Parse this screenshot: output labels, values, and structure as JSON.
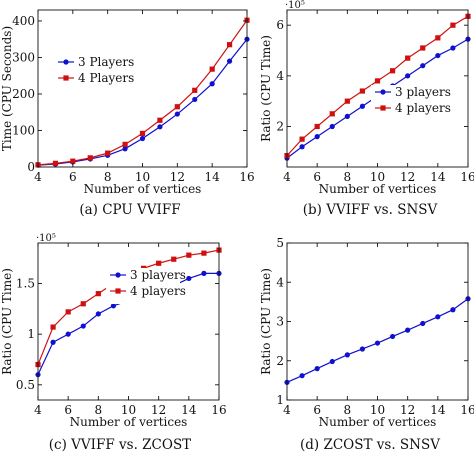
{
  "chart_data": [
    {
      "type": "line",
      "caption": "(a) CPU VVIFF",
      "xlabel": "Number of vertices",
      "ylabel": "Time (CPU Seconds)",
      "xlim": [
        4,
        16
      ],
      "ylim": [
        0,
        430
      ],
      "xticks": [
        4,
        6,
        8,
        10,
        12,
        14,
        16
      ],
      "yticks": [
        0,
        100,
        200,
        300,
        400
      ],
      "ytick_labels": [
        "0",
        "100",
        "200",
        "300",
        "400"
      ],
      "y_multiplier": "",
      "legend_position": "left",
      "series": [
        {
          "name": "3 Players",
          "color": "#1010d0",
          "marker": "circle",
          "x": [
            4,
            5,
            6,
            7,
            8,
            9,
            10,
            11,
            12,
            13,
            14,
            15,
            16
          ],
          "y": [
            5,
            8,
            14,
            22,
            32,
            50,
            78,
            110,
            145,
            185,
            228,
            290,
            350
          ]
        },
        {
          "name": "4 Players",
          "color": "#d01010",
          "marker": "square",
          "x": [
            4,
            5,
            6,
            7,
            8,
            9,
            10,
            11,
            12,
            13,
            14,
            15,
            16
          ],
          "y": [
            6,
            10,
            16,
            25,
            38,
            62,
            92,
            128,
            165,
            210,
            268,
            335,
            402
          ]
        }
      ]
    },
    {
      "type": "line",
      "caption": "(b) VVIFF vs. SNSV",
      "xlabel": "Number of vertices",
      "ylabel": "Ratio (CPU Time)",
      "xlim": [
        4,
        16
      ],
      "ylim": [
        0.4,
        6.6
      ],
      "xticks": [
        4,
        6,
        8,
        10,
        12,
        14,
        16
      ],
      "yticks": [
        2,
        4,
        6
      ],
      "ytick_labels": [
        "2",
        "4",
        "6"
      ],
      "y_multiplier": "·10⁵",
      "legend_position": "right",
      "series": [
        {
          "name": "3 players",
          "color": "#1010d0",
          "marker": "circle",
          "x": [
            4,
            5,
            6,
            7,
            8,
            9,
            10,
            11,
            12,
            13,
            14,
            15,
            16
          ],
          "y": [
            0.75,
            1.2,
            1.6,
            2.0,
            2.4,
            2.8,
            3.2,
            3.6,
            4.0,
            4.4,
            4.8,
            5.1,
            5.45
          ]
        },
        {
          "name": "4 players",
          "color": "#d01010",
          "marker": "square",
          "x": [
            4,
            5,
            6,
            7,
            8,
            9,
            10,
            11,
            12,
            13,
            14,
            15,
            16
          ],
          "y": [
            0.85,
            1.5,
            2.0,
            2.5,
            3.0,
            3.4,
            3.8,
            4.2,
            4.7,
            5.1,
            5.5,
            6.0,
            6.35
          ]
        }
      ]
    },
    {
      "type": "line",
      "caption": "(c) VVIFF vs. ZCOST",
      "xlabel": "Number of vertices",
      "ylabel": "Ratio (CPU Time)",
      "xlim": [
        4,
        16
      ],
      "ylim": [
        0.35,
        1.9
      ],
      "xticks": [
        4,
        6,
        8,
        10,
        12,
        14,
        16
      ],
      "yticks": [
        0.5,
        1,
        1.5
      ],
      "ytick_labels": [
        "0.5",
        "1",
        "1.5"
      ],
      "y_multiplier": "·10⁵",
      "legend_position": "right",
      "series": [
        {
          "name": "3 players",
          "color": "#1010d0",
          "marker": "circle",
          "x": [
            4,
            5,
            6,
            7,
            8,
            9,
            10,
            11,
            12,
            13,
            14,
            15,
            16
          ],
          "y": [
            0.6,
            0.92,
            1.0,
            1.08,
            1.2,
            1.28,
            1.33,
            1.38,
            1.42,
            1.48,
            1.55,
            1.6,
            1.6
          ]
        },
        {
          "name": "4 players",
          "color": "#d01010",
          "marker": "square",
          "x": [
            4,
            5,
            6,
            7,
            8,
            9,
            10,
            11,
            12,
            13,
            14,
            15,
            16
          ],
          "y": [
            0.7,
            1.07,
            1.22,
            1.3,
            1.4,
            1.5,
            1.58,
            1.65,
            1.7,
            1.74,
            1.78,
            1.8,
            1.83
          ]
        }
      ]
    },
    {
      "type": "line",
      "caption": "(d) ZCOST vs. SNSV",
      "xlabel": "Number of vertices",
      "ylabel": "Ratio (CPU Time)",
      "xlim": [
        4,
        16
      ],
      "ylim": [
        1,
        5
      ],
      "xticks": [
        4,
        6,
        8,
        10,
        12,
        14,
        16
      ],
      "yticks": [
        1,
        2,
        3,
        4,
        5
      ],
      "ytick_labels": [
        "1",
        "2",
        "3",
        "4",
        "5"
      ],
      "y_multiplier": "",
      "legend_position": "none",
      "series": [
        {
          "name": "",
          "color": "#1010d0",
          "marker": "circle",
          "x": [
            4,
            5,
            6,
            7,
            8,
            9,
            10,
            11,
            12,
            13,
            14,
            15,
            16
          ],
          "y": [
            1.45,
            1.62,
            1.8,
            1.98,
            2.15,
            2.3,
            2.45,
            2.62,
            2.78,
            2.95,
            3.12,
            3.3,
            3.58
          ]
        }
      ]
    }
  ]
}
